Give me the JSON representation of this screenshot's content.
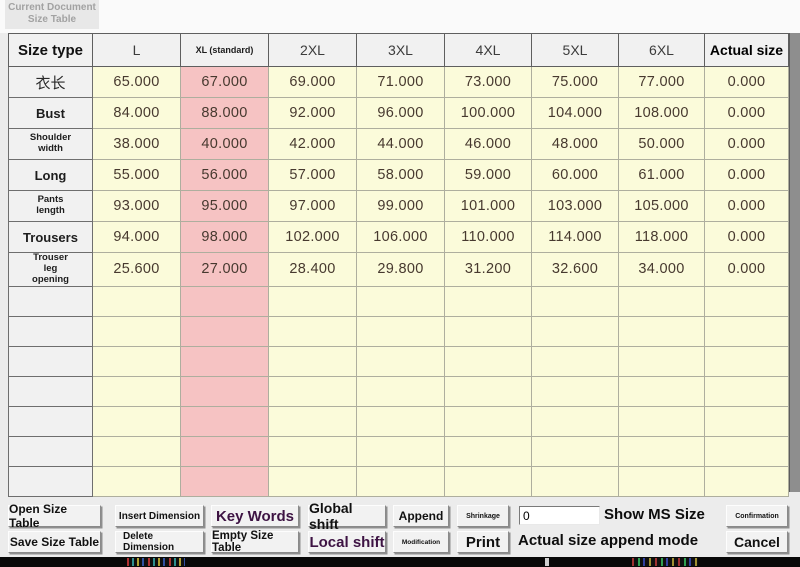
{
  "badge": {
    "line1": "Current Document",
    "line2": "Size Table"
  },
  "table": {
    "columns": [
      {
        "label": "Size type"
      },
      {
        "label": "L"
      },
      {
        "label": "XL (standard)"
      },
      {
        "label": "2XL"
      },
      {
        "label": "3XL"
      },
      {
        "label": "4XL"
      },
      {
        "label": "5XL"
      },
      {
        "label": "6XL"
      },
      {
        "label": "Actual size"
      }
    ],
    "highlight_column_index": 2,
    "rows": [
      {
        "label": "衣长",
        "values": [
          "65.000",
          "67.000",
          "69.000",
          "71.000",
          "73.000",
          "75.000",
          "77.000",
          "0.000"
        ]
      },
      {
        "label": "Bust",
        "values": [
          "84.000",
          "88.000",
          "92.000",
          "96.000",
          "100.000",
          "104.000",
          "108.000",
          "0.000"
        ]
      },
      {
        "label": "Shoulder width",
        "values": [
          "38.000",
          "40.000",
          "42.000",
          "44.000",
          "46.000",
          "48.000",
          "50.000",
          "0.000"
        ]
      },
      {
        "label": "Long",
        "values": [
          "55.000",
          "56.000",
          "57.000",
          "58.000",
          "59.000",
          "60.000",
          "61.000",
          "0.000"
        ]
      },
      {
        "label": "Pants length",
        "values": [
          "93.000",
          "95.000",
          "97.000",
          "99.000",
          "101.000",
          "103.000",
          "105.000",
          "0.000"
        ]
      },
      {
        "label": "Trousers",
        "values": [
          "94.000",
          "98.000",
          "102.000",
          "106.000",
          "110.000",
          "114.000",
          "118.000",
          "0.000"
        ]
      },
      {
        "label": "Trouser leg opening",
        "values": [
          "25.600",
          "27.000",
          "28.400",
          "29.800",
          "31.200",
          "32.600",
          "34.000",
          "0.000"
        ]
      }
    ],
    "empty_rows": 7
  },
  "toolbar": {
    "open": "Open Size Table",
    "save": "Save Size Table",
    "insert": "Insert Dimension",
    "delete": "Delete Dimension",
    "keywords": "Key Words",
    "empty": "Empty Size Table",
    "global_shift": "Global shift",
    "local_shift": "Local shift",
    "append": "Append",
    "modification": "Modification",
    "shrinkage": "Shrinkage",
    "print": "Print",
    "ms_input_value": "0",
    "show_ms_label": "Show MS Size",
    "append_mode_label": "Actual size append mode",
    "confirmation": "Confirmation",
    "cancel": "Cancel"
  },
  "colors": {
    "highlight_pink": "#f6c3c3",
    "cell_yellow": "#fbfbda",
    "accent_purple": "#3d1343",
    "panel_gray": "#f1f1f1"
  }
}
